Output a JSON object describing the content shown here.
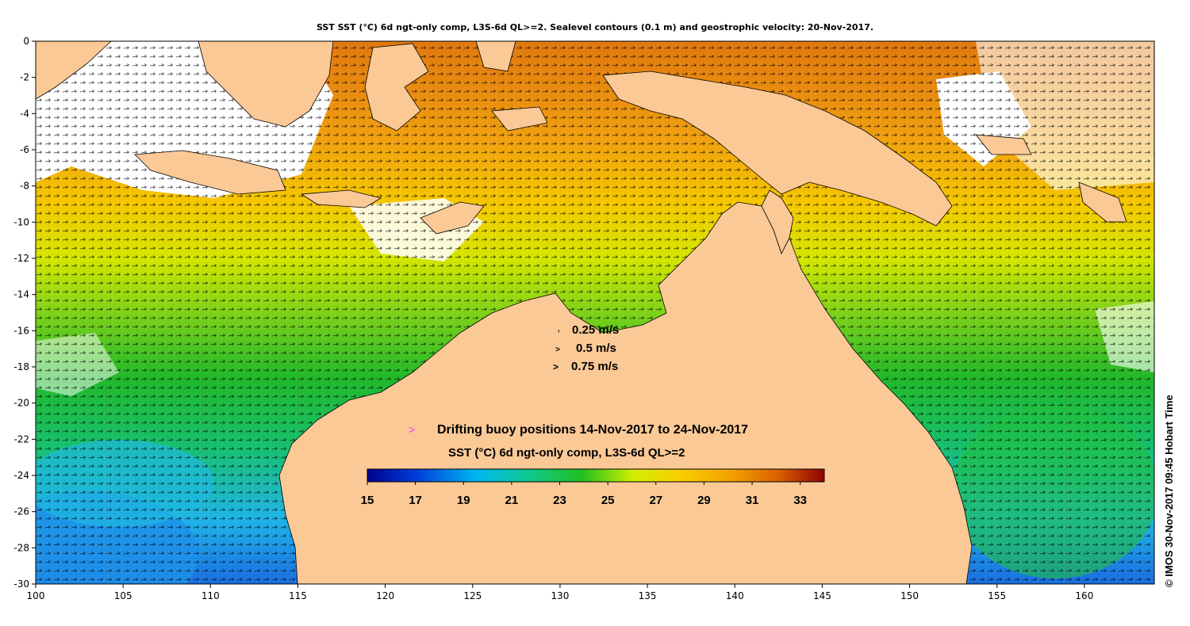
{
  "title": "SST SST (°C) 6d ngt-only comp, L3S-6d QL>=2. Sealevel contours (0.1 m) and geostrophic velocity: 20-Nov-2017.",
  "axes": {
    "x_ticks": [
      "100",
      "105",
      "110",
      "115",
      "120",
      "125",
      "130",
      "135",
      "140",
      "145",
      "150",
      "155",
      "160"
    ],
    "y_ticks": [
      "0",
      "-2",
      "-4",
      "-6",
      "-8",
      "-10",
      "-12",
      "-14",
      "-16",
      "-18",
      "-20",
      "-22",
      "-24",
      "-26",
      "-28",
      "-30"
    ],
    "lon_range": [
      100,
      164
    ],
    "lat_range": [
      -30,
      0
    ]
  },
  "velocity_key": {
    "items": [
      "0.25 m/s",
      "0.5 m/s",
      "0.75 m/s"
    ]
  },
  "buoy_legend": {
    "symbol": ">",
    "label": "Drifting buoy positions 14-Nov-2017 to 24-Nov-2017",
    "color": "#ff33ff"
  },
  "colorbar": {
    "title": "SST (°C) 6d ngt-only comp, L3S-6d QL>=2",
    "range": [
      15,
      34
    ],
    "tick_labels": [
      "15",
      "17",
      "19",
      "21",
      "23",
      "25",
      "27",
      "29",
      "31",
      "33"
    ],
    "colors": [
      "#00008f",
      "#0040d8",
      "#00b8f0",
      "#10c890",
      "#20c020",
      "#d0ee00",
      "#f8d000",
      "#f0a000",
      "#d86000",
      "#900000"
    ]
  },
  "credit": "© IMOS 30-Nov-2017 09:45 Hobart Time",
  "land_color": "#fbc996",
  "cloud_color": "#ffffff"
}
